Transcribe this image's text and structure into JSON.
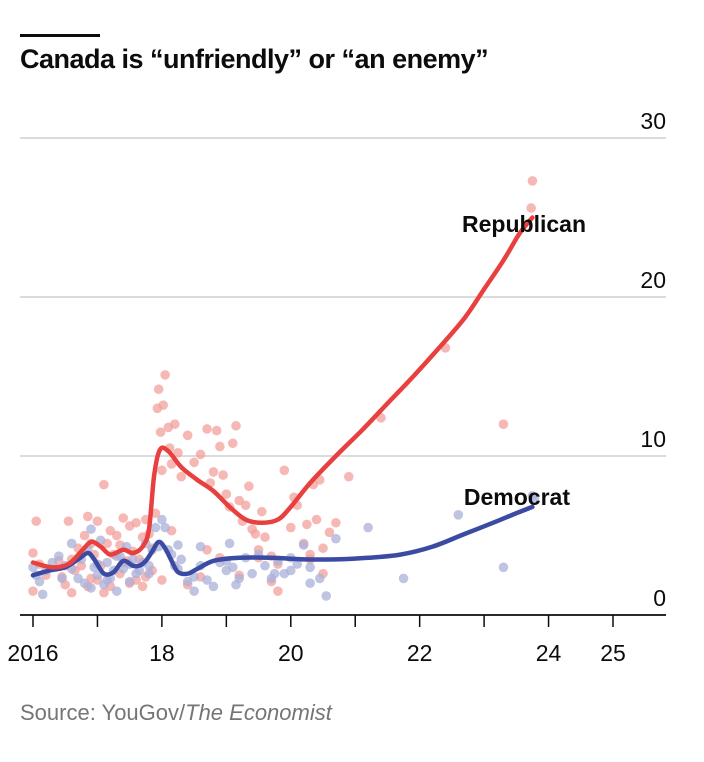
{
  "title": "Canada is “unfriendly” or “an enemy”",
  "source": {
    "prefix": "Source: YouGov/",
    "publication": "The Economist"
  },
  "colors": {
    "republican": "#e8403f",
    "republican_dot": "#f2a09c",
    "democrat": "#3b4aa3",
    "democrat_dot": "#a9b0da",
    "grid": "#cfcfcf",
    "axis": "#0c0c0c",
    "text": "#0c0c0c"
  },
  "chart_data": {
    "type": "line",
    "title": "Canada is “unfriendly” or “an enemy”",
    "xlabel": "",
    "ylabel": "",
    "xlim": [
      2015.85,
      2025.85
    ],
    "ylim": [
      0,
      30
    ],
    "y_ticks": [
      0,
      10,
      20,
      30
    ],
    "x_ticks": [
      {
        "value": 2016,
        "label": "2016"
      },
      {
        "value": 2017,
        "label": ""
      },
      {
        "value": 2018,
        "label": "18"
      },
      {
        "value": 2019,
        "label": ""
      },
      {
        "value": 2020,
        "label": "20"
      },
      {
        "value": 2021,
        "label": ""
      },
      {
        "value": 2022,
        "label": "22"
      },
      {
        "value": 2023,
        "label": ""
      },
      {
        "value": 2024,
        "label": "24"
      },
      {
        "value": 2025,
        "label": "25"
      }
    ],
    "series": [
      {
        "name": "Republican",
        "trend": [
          [
            2016.0,
            3.3
          ],
          [
            2016.3,
            3.0
          ],
          [
            2016.55,
            3.2
          ],
          [
            2016.75,
            4.0
          ],
          [
            2016.9,
            4.6
          ],
          [
            2017.05,
            4.3
          ],
          [
            2017.2,
            3.8
          ],
          [
            2017.4,
            4.1
          ],
          [
            2017.55,
            3.9
          ],
          [
            2017.7,
            4.3
          ],
          [
            2017.8,
            5.4
          ],
          [
            2017.88,
            8.8
          ],
          [
            2017.97,
            10.4
          ],
          [
            2018.1,
            10.3
          ],
          [
            2018.3,
            9.3
          ],
          [
            2018.55,
            8.5
          ],
          [
            2018.8,
            7.8
          ],
          [
            2019.05,
            6.8
          ],
          [
            2019.3,
            6.0
          ],
          [
            2019.55,
            5.8
          ],
          [
            2019.8,
            6.0
          ],
          [
            2020.0,
            6.8
          ],
          [
            2020.3,
            8.3
          ],
          [
            2020.7,
            10.0
          ],
          [
            2021.1,
            11.6
          ],
          [
            2021.5,
            13.3
          ],
          [
            2021.9,
            15.0
          ],
          [
            2022.3,
            16.8
          ],
          [
            2022.7,
            18.7
          ],
          [
            2023.0,
            20.5
          ],
          [
            2023.3,
            22.3
          ],
          [
            2023.55,
            24.0
          ],
          [
            2023.75,
            25.0
          ]
        ],
        "points": [
          [
            2016.0,
            3.9
          ],
          [
            2016.05,
            5.9
          ],
          [
            2016.1,
            3.2
          ],
          [
            2016.0,
            1.5
          ],
          [
            2016.2,
            2.5
          ],
          [
            2016.55,
            5.9
          ],
          [
            2016.6,
            3.5
          ],
          [
            2016.7,
            4.2
          ],
          [
            2016.75,
            3.1
          ],
          [
            2016.8,
            5.0
          ],
          [
            2016.85,
            6.2
          ],
          [
            2016.9,
            4.5
          ],
          [
            2016.95,
            3.8
          ],
          [
            2017.0,
            5.9
          ],
          [
            2017.05,
            3.1
          ],
          [
            2017.1,
            8.2
          ],
          [
            2017.15,
            4.5
          ],
          [
            2017.2,
            5.3
          ],
          [
            2017.25,
            3.8
          ],
          [
            2017.3,
            5.0
          ],
          [
            2017.35,
            4.4
          ],
          [
            2017.4,
            6.1
          ],
          [
            2017.45,
            3.4
          ],
          [
            2017.5,
            5.6
          ],
          [
            2017.55,
            4.0
          ],
          [
            2017.6,
            5.8
          ],
          [
            2017.65,
            3.5
          ],
          [
            2017.7,
            4.9
          ],
          [
            2017.75,
            6.0
          ],
          [
            2017.8,
            5.1
          ],
          [
            2017.85,
            4.2
          ],
          [
            2017.9,
            6.4
          ],
          [
            2017.93,
            13.0
          ],
          [
            2017.95,
            14.2
          ],
          [
            2017.98,
            11.5
          ],
          [
            2018.0,
            9.1
          ],
          [
            2018.02,
            13.2
          ],
          [
            2018.05,
            15.1
          ],
          [
            2018.1,
            11.8
          ],
          [
            2018.12,
            10.5
          ],
          [
            2018.15,
            9.5
          ],
          [
            2018.2,
            12.0
          ],
          [
            2018.25,
            10.2
          ],
          [
            2018.3,
            8.7
          ],
          [
            2018.4,
            11.3
          ],
          [
            2018.5,
            9.6
          ],
          [
            2018.6,
            10.1
          ],
          [
            2018.7,
            11.7
          ],
          [
            2018.75,
            8.3
          ],
          [
            2018.8,
            9.0
          ],
          [
            2018.85,
            11.6
          ],
          [
            2018.9,
            10.6
          ],
          [
            2018.95,
            8.8
          ],
          [
            2019.0,
            7.6
          ],
          [
            2019.05,
            6.8
          ],
          [
            2019.1,
            10.8
          ],
          [
            2019.15,
            11.9
          ],
          [
            2019.2,
            7.2
          ],
          [
            2019.25,
            5.9
          ],
          [
            2019.3,
            6.9
          ],
          [
            2019.35,
            8.1
          ],
          [
            2019.4,
            5.4
          ],
          [
            2019.45,
            5.1
          ],
          [
            2019.5,
            4.1
          ],
          [
            2019.55,
            6.5
          ],
          [
            2019.6,
            4.9
          ],
          [
            2019.7,
            3.7
          ],
          [
            2019.8,
            3.2
          ],
          [
            2019.9,
            9.1
          ],
          [
            2020.0,
            5.5
          ],
          [
            2020.05,
            7.4
          ],
          [
            2020.1,
            6.9
          ],
          [
            2020.2,
            4.5
          ],
          [
            2020.25,
            5.7
          ],
          [
            2020.3,
            3.5
          ],
          [
            2020.35,
            8.2
          ],
          [
            2020.4,
            6.0
          ],
          [
            2020.45,
            8.5
          ],
          [
            2020.5,
            4.2
          ],
          [
            2020.6,
            5.2
          ],
          [
            2020.7,
            5.8
          ],
          [
            2020.9,
            8.7
          ],
          [
            2021.4,
            12.4
          ],
          [
            2022.4,
            16.8
          ],
          [
            2023.3,
            12.0
          ],
          [
            2023.75,
            27.3
          ],
          [
            2023.73,
            25.6
          ],
          [
            2016.4,
            3.4
          ],
          [
            2016.45,
            2.4
          ],
          [
            2016.5,
            1.9
          ],
          [
            2016.65,
            2.8
          ],
          [
            2016.9,
            2.3
          ],
          [
            2017.0,
            2.2
          ],
          [
            2017.2,
            1.8
          ],
          [
            2017.35,
            2.6
          ],
          [
            2017.5,
            2.0
          ],
          [
            2017.6,
            2.2
          ],
          [
            2017.7,
            1.8
          ],
          [
            2017.75,
            2.4
          ],
          [
            2017.85,
            2.8
          ],
          [
            2018.0,
            2.2
          ],
          [
            2018.15,
            5.3
          ],
          [
            2018.4,
            1.9
          ],
          [
            2018.6,
            2.4
          ],
          [
            2018.7,
            4.1
          ],
          [
            2018.9,
            3.6
          ],
          [
            2019.2,
            2.5
          ],
          [
            2019.5,
            3.6
          ],
          [
            2019.7,
            2.1
          ],
          [
            2019.8,
            1.5
          ],
          [
            2020.3,
            3.8
          ],
          [
            2020.5,
            2.6
          ],
          [
            2016.6,
            1.4
          ],
          [
            2016.85,
            1.8
          ],
          [
            2017.1,
            1.4
          ],
          [
            2017.4,
            3.3
          ]
        ]
      },
      {
        "name": "Democrat",
        "trend": [
          [
            2016.0,
            2.5
          ],
          [
            2016.25,
            2.8
          ],
          [
            2016.5,
            3.0
          ],
          [
            2016.7,
            3.5
          ],
          [
            2016.85,
            3.9
          ],
          [
            2016.95,
            3.5
          ],
          [
            2017.1,
            2.6
          ],
          [
            2017.25,
            2.7
          ],
          [
            2017.4,
            3.4
          ],
          [
            2017.55,
            3.1
          ],
          [
            2017.65,
            3.1
          ],
          [
            2017.75,
            3.4
          ],
          [
            2017.85,
            4.0
          ],
          [
            2017.95,
            4.6
          ],
          [
            2018.05,
            4.2
          ],
          [
            2018.15,
            3.4
          ],
          [
            2018.25,
            2.7
          ],
          [
            2018.4,
            2.6
          ],
          [
            2018.55,
            2.9
          ],
          [
            2018.8,
            3.4
          ],
          [
            2019.2,
            3.6
          ],
          [
            2019.7,
            3.6
          ],
          [
            2020.2,
            3.5
          ],
          [
            2020.7,
            3.5
          ],
          [
            2021.2,
            3.6
          ],
          [
            2021.7,
            3.8
          ],
          [
            2022.2,
            4.3
          ],
          [
            2022.7,
            5.1
          ],
          [
            2023.2,
            5.9
          ],
          [
            2023.5,
            6.4
          ],
          [
            2023.75,
            6.8
          ]
        ],
        "points": [
          [
            2016.0,
            3.0
          ],
          [
            2016.05,
            2.5
          ],
          [
            2016.1,
            2.1
          ],
          [
            2016.15,
            1.3
          ],
          [
            2016.2,
            2.8
          ],
          [
            2016.45,
            2.3
          ],
          [
            2016.5,
            3.1
          ],
          [
            2016.6,
            4.5
          ],
          [
            2016.7,
            2.3
          ],
          [
            2016.75,
            3.5
          ],
          [
            2016.8,
            2.0
          ],
          [
            2016.85,
            4.2
          ],
          [
            2016.9,
            5.4
          ],
          [
            2016.95,
            3.0
          ],
          [
            2017.0,
            2.5
          ],
          [
            2017.05,
            4.7
          ],
          [
            2017.1,
            1.9
          ],
          [
            2017.15,
            3.3
          ],
          [
            2017.2,
            2.3
          ],
          [
            2017.25,
            2.8
          ],
          [
            2017.3,
            1.5
          ],
          [
            2017.35,
            3.7
          ],
          [
            2017.4,
            2.9
          ],
          [
            2017.45,
            4.3
          ],
          [
            2017.5,
            2.1
          ],
          [
            2017.55,
            3.5
          ],
          [
            2017.6,
            2.6
          ],
          [
            2017.65,
            2.8
          ],
          [
            2017.7,
            3.3
          ],
          [
            2017.75,
            4.5
          ],
          [
            2017.8,
            3.1
          ],
          [
            2017.85,
            4.1
          ],
          [
            2017.9,
            5.5
          ],
          [
            2017.95,
            4.3
          ],
          [
            2018.0,
            6.0
          ],
          [
            2018.05,
            5.5
          ],
          [
            2018.1,
            4.1
          ],
          [
            2018.15,
            3.8
          ],
          [
            2018.2,
            3.1
          ],
          [
            2018.25,
            4.4
          ],
          [
            2018.3,
            3.5
          ],
          [
            2018.4,
            2.1
          ],
          [
            2018.5,
            2.4
          ],
          [
            2018.6,
            3.1
          ],
          [
            2018.7,
            2.2
          ],
          [
            2018.8,
            1.8
          ],
          [
            2018.9,
            3.3
          ],
          [
            2019.0,
            2.8
          ],
          [
            2019.05,
            4.5
          ],
          [
            2019.1,
            3.0
          ],
          [
            2019.15,
            1.9
          ],
          [
            2019.2,
            2.3
          ],
          [
            2019.3,
            3.6
          ],
          [
            2019.4,
            2.6
          ],
          [
            2019.5,
            3.8
          ],
          [
            2019.6,
            3.1
          ],
          [
            2019.7,
            2.3
          ],
          [
            2019.75,
            2.6
          ],
          [
            2019.8,
            3.4
          ],
          [
            2019.9,
            2.6
          ],
          [
            2020.0,
            3.6
          ],
          [
            2020.1,
            3.2
          ],
          [
            2020.2,
            4.4
          ],
          [
            2020.3,
            3.0
          ],
          [
            2020.45,
            2.3
          ],
          [
            2020.55,
            1.2
          ],
          [
            2020.7,
            4.8
          ],
          [
            2021.2,
            5.5
          ],
          [
            2021.75,
            2.3
          ],
          [
            2022.6,
            6.3
          ],
          [
            2023.3,
            3.0
          ],
          [
            2023.75,
            7.5
          ],
          [
            2023.78,
            7.3
          ],
          [
            2016.3,
            3.3
          ],
          [
            2016.6,
            2.9
          ],
          [
            2016.9,
            1.7
          ],
          [
            2017.15,
            2.2
          ],
          [
            2017.3,
            3.7
          ],
          [
            2017.5,
            3.2
          ],
          [
            2018.25,
            2.9
          ],
          [
            2018.5,
            1.5
          ],
          [
            2019.0,
            3.4
          ],
          [
            2020.0,
            2.8
          ],
          [
            2020.3,
            2.0
          ],
          [
            2016.4,
            3.7
          ],
          [
            2017.0,
            3.2
          ],
          [
            2017.8,
            2.6
          ],
          [
            2018.6,
            4.3
          ]
        ]
      }
    ],
    "labels": {
      "republican": "Republican",
      "democrat": "Democrat"
    }
  }
}
